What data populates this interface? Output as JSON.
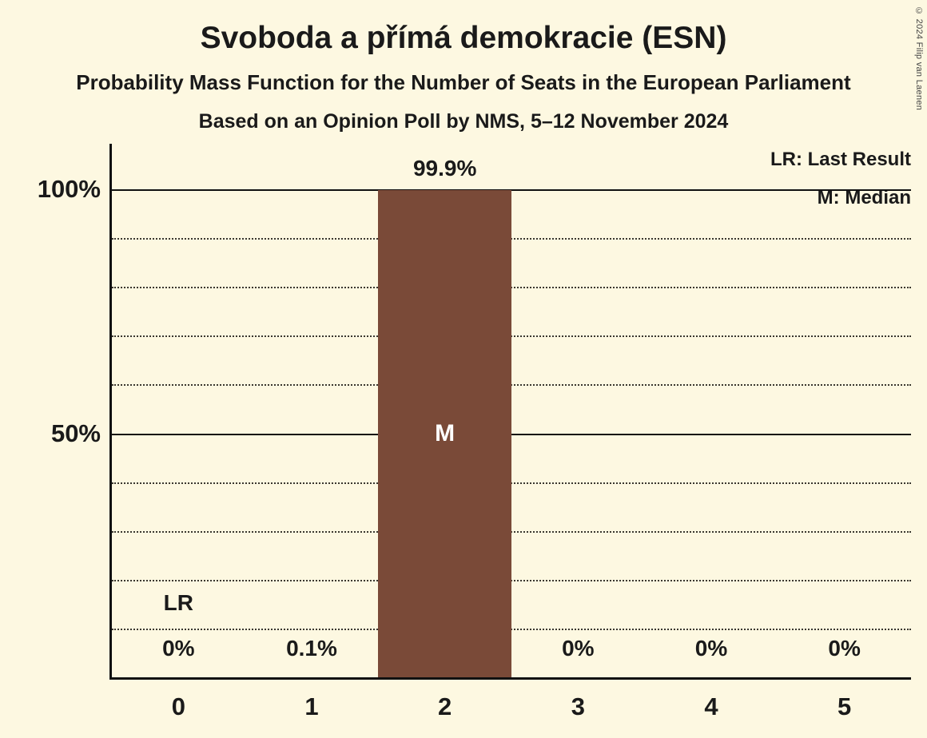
{
  "title": "Svoboda a přímá demokracie (ESN)",
  "subtitle": "Probability Mass Function for the Number of Seats in the European Parliament",
  "poll_line": "Based on an Opinion Poll by NMS, 5–12 November 2024",
  "copyright": "© 2024 Filip van Laenen",
  "legend": {
    "last_result": "LR: Last Result",
    "median": "M: Median"
  },
  "colors": {
    "background": "#fdf8e1",
    "bar": "#7a4a38",
    "text": "#1a1a1a",
    "marker_on_bar": "#ffffff",
    "axis": "#111111"
  },
  "chart_data": {
    "type": "bar",
    "title": "Svoboda a přímá demokracie (ESN)",
    "xlabel": "",
    "ylabel": "",
    "categories": [
      "0",
      "1",
      "2",
      "3",
      "4",
      "5"
    ],
    "values": [
      0,
      0.1,
      99.9,
      0,
      0,
      0
    ],
    "value_labels": [
      "0%",
      "0.1%",
      "99.9%",
      "0%",
      "0%",
      "0%"
    ],
    "yticks": [
      {
        "label": "100%",
        "value": 100
      },
      {
        "label": "50%",
        "value": 50
      }
    ],
    "gridlines_pct": [
      10,
      20,
      30,
      40,
      50,
      60,
      70,
      80,
      90,
      100
    ],
    "solid_gridlines_pct": [
      50,
      100
    ],
    "ylim": [
      0,
      109
    ],
    "grid": true,
    "legend_position": "top-right",
    "median_column": 2,
    "median_marker": "M",
    "last_result_column": 0,
    "last_result_marker": "LR"
  }
}
